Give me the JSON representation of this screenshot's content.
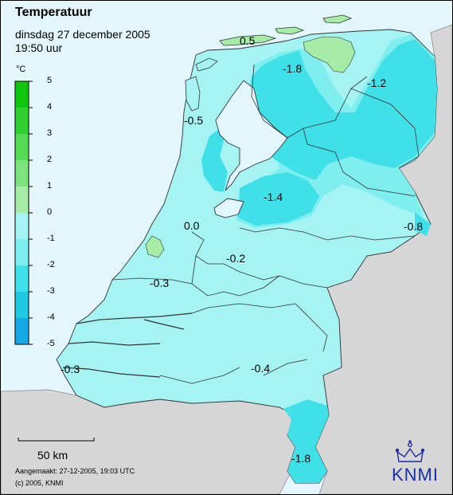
{
  "header": {
    "title": "Temperatuur",
    "date": "dinsdag 27 december 2005",
    "time": "19:50 uur"
  },
  "legend": {
    "unit": "°C",
    "ticks": [
      "5",
      "4",
      "3",
      "2",
      "1",
      "0",
      "-1",
      "-2",
      "-3",
      "-4",
      "-5"
    ],
    "bands": [
      {
        "from": 4,
        "to": 5,
        "color": "#0dc60d"
      },
      {
        "from": 3,
        "to": 4,
        "color": "#30d030"
      },
      {
        "from": 2,
        "to": 3,
        "color": "#55da55"
      },
      {
        "from": 1,
        "to": 2,
        "color": "#7de37d"
      },
      {
        "from": 0,
        "to": 1,
        "color": "#a6eca6"
      },
      {
        "from": -1,
        "to": 0,
        "color": "#a6f3f3"
      },
      {
        "from": -2,
        "to": -1,
        "color": "#7eeeee"
      },
      {
        "from": -3,
        "to": -2,
        "color": "#3fe0e8"
      },
      {
        "from": -4,
        "to": -3,
        "color": "#20c9e0"
      },
      {
        "from": -5,
        "to": -4,
        "color": "#14a8e4"
      }
    ]
  },
  "map": {
    "sea_color": "#e2f6fb",
    "foreign_land_color": "#d6d6d6",
    "values": [
      "0.5",
      "-1.8",
      "-1.2",
      "-0.5",
      "-1.4",
      "0.0",
      "-0.8",
      "-0.2",
      "-0.3",
      "-0.3",
      "-0.4",
      "-1.8"
    ]
  },
  "scale_bar": {
    "label": "50 km"
  },
  "footer": {
    "created": "Aangemaakt: 27-12-2005, 19:03 UTC",
    "copyright": "(c) 2005, KNMI"
  },
  "logo": {
    "text": "KNMI",
    "color": "#1b2fa5"
  }
}
